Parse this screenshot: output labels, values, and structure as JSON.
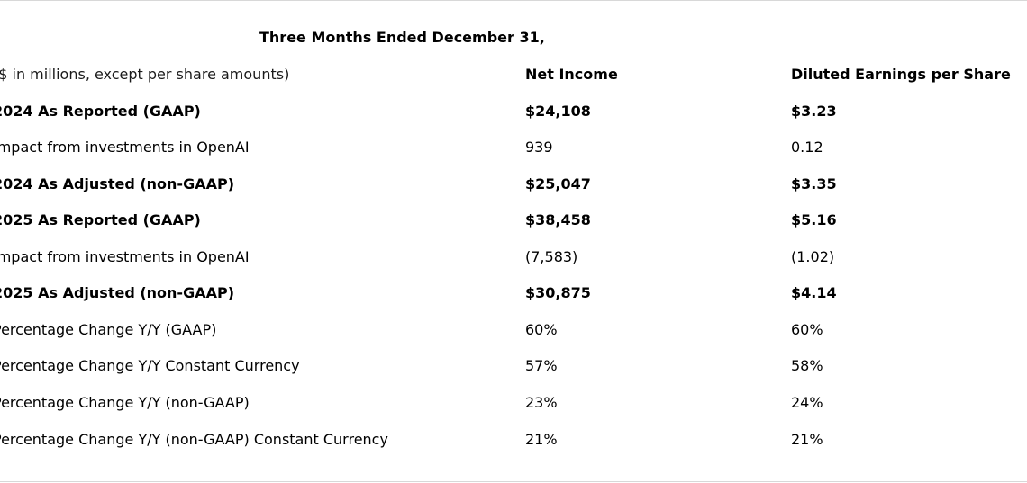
{
  "table": {
    "caption": "Three Months Ended December 31,",
    "header": {
      "label": "($ in millions, except per share amounts)",
      "net_income": "Net Income",
      "diluted_eps": "Diluted Earnings per Share"
    },
    "rows": [
      {
        "label": "2024 As Reported (GAAP)",
        "net_income": "$24,108",
        "diluted_eps": "$3.23",
        "bold": true
      },
      {
        "label": "Impact from investments in OpenAI",
        "net_income": "939",
        "diluted_eps": "0.12",
        "bold": false
      },
      {
        "label": "2024 As Adjusted (non-GAAP)",
        "net_income": "$25,047",
        "diluted_eps": "$3.35",
        "bold": true
      },
      {
        "label": "2025 As Reported (GAAP)",
        "net_income": "$38,458",
        "diluted_eps": "$5.16",
        "bold": true
      },
      {
        "label": "Impact from investments in OpenAI",
        "net_income": "(7,583)",
        "diluted_eps": "(1.02)",
        "bold": false
      },
      {
        "label": "2025 As Adjusted (non-GAAP)",
        "net_income": "$30,875",
        "diluted_eps": "$4.14",
        "bold": true
      },
      {
        "label": "Percentage Change Y/Y (GAAP)",
        "net_income": "60%",
        "diluted_eps": "60%",
        "bold": false
      },
      {
        "label": "Percentage Change Y/Y Constant Currency",
        "net_income": "57%",
        "diluted_eps": "58%",
        "bold": false
      },
      {
        "label": "Percentage Change Y/Y (non-GAAP)",
        "net_income": "23%",
        "diluted_eps": "24%",
        "bold": false
      },
      {
        "label": "Percentage Change Y/Y (non-GAAP) Constant Currency",
        "net_income": "21%",
        "diluted_eps": "21%",
        "bold": false
      }
    ]
  }
}
